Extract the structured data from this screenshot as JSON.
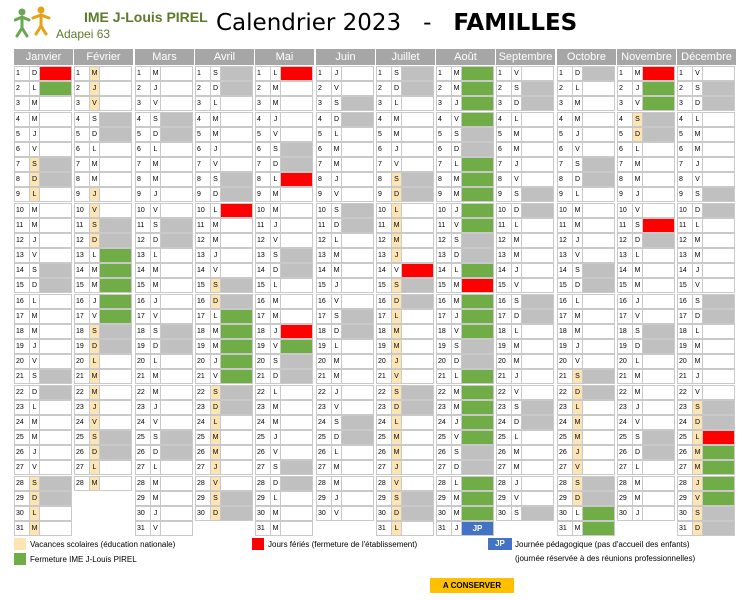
{
  "header": {
    "logo_name": "IME J-Louis PIREL",
    "logo_sub": "Adapei 63",
    "title_part1": "Calendrier 2023   -   ",
    "title_part2": "FAMILLES"
  },
  "colors": {
    "vacances": "#fce4b4",
    "fermeture": "#70ad47",
    "ferie": "#ff0000",
    "weekend": "#c0c0c0",
    "jp": "#4472c4",
    "header_bg": "#a6a6a6"
  },
  "months": [
    {
      "name": "Janvier",
      "first": 0,
      "days": 31,
      "ferie": [
        1
      ],
      "fermeture": [
        2
      ],
      "vacances": [
        7,
        8,
        9,
        28,
        29,
        30,
        31
      ],
      "jp": []
    },
    {
      "name": "Février",
      "first": 3,
      "days": 28,
      "ferie": [],
      "fermeture": [
        13,
        14,
        15,
        16,
        17
      ],
      "vacances": [
        1,
        2,
        3,
        9,
        10,
        11,
        12,
        18,
        19,
        20,
        21,
        22,
        23,
        24,
        25,
        26,
        27,
        28
      ],
      "jp": []
    },
    {
      "name": "Mars",
      "first": 3,
      "days": 31,
      "ferie": [],
      "fermeture": [],
      "vacances": [],
      "jp": []
    },
    {
      "name": "Avril",
      "first": 6,
      "days": 30,
      "ferie": [
        10
      ],
      "fermeture": [
        17,
        18,
        19,
        20,
        21
      ],
      "vacances": [
        15,
        16,
        22,
        23,
        24,
        25,
        26,
        27,
        28,
        29,
        30
      ],
      "jp": []
    },
    {
      "name": "Mai",
      "first": 1,
      "days": 31,
      "ferie": [
        1,
        8,
        18
      ],
      "fermeture": [
        19
      ],
      "vacances": [],
      "jp": []
    },
    {
      "name": "Juin",
      "first": 4,
      "days": 30,
      "ferie": [],
      "fermeture": [],
      "vacances": [],
      "jp": []
    },
    {
      "name": "Juillet",
      "first": 6,
      "days": 31,
      "ferie": [
        14
      ],
      "fermeture": [],
      "vacances": [
        8,
        9,
        10,
        11,
        12,
        13,
        15,
        16,
        17,
        18,
        19,
        20,
        21,
        22,
        23,
        24,
        25,
        26,
        27,
        28,
        29,
        30,
        31
      ],
      "jp": []
    },
    {
      "name": "Août",
      "first": 2,
      "days": 31,
      "ferie": [
        15
      ],
      "fermeture": [
        1,
        2,
        3,
        4,
        7,
        8,
        9,
        10,
        11,
        14,
        16,
        17,
        18,
        21,
        22,
        23,
        24,
        25,
        28,
        29,
        30
      ],
      "vacances": [],
      "jp": [
        31
      ]
    },
    {
      "name": "Septembre",
      "first": 5,
      "days": 30,
      "ferie": [],
      "fermeture": [],
      "vacances": [],
      "jp": []
    },
    {
      "name": "Octobre",
      "first": 0,
      "days": 31,
      "ferie": [],
      "fermeture": [
        30,
        31
      ],
      "vacances": [
        21,
        22,
        23,
        24,
        25,
        26,
        27,
        28,
        29
      ],
      "jp": []
    },
    {
      "name": "Novembre",
      "first": 3,
      "days": 30,
      "ferie": [
        1,
        11
      ],
      "fermeture": [
        1,
        2,
        3
      ],
      "vacances": [
        4,
        5
      ],
      "jp": []
    },
    {
      "name": "Décembre",
      "first": 5,
      "days": 31,
      "ferie": [
        25
      ],
      "fermeture": [
        26,
        27,
        28,
        29
      ],
      "vacances": [
        23,
        24,
        25,
        26,
        27,
        28,
        29,
        30,
        31
      ],
      "jp": []
    }
  ],
  "day_letters": [
    "D",
    "L",
    "M",
    "M",
    "J",
    "V",
    "S"
  ],
  "jp_label": "JP",
  "legend": {
    "vacances": "Vacances scolaires (éducation nationale)",
    "fermeture": "Fermeture IME J-Louis PIREL",
    "ferie": "Jours fériés (fermeture de l'établissement)",
    "jp_key": "JP",
    "jp_line1": "Journée pédagogique (pas d'accueil des enfants)",
    "jp_line2": "(journée réservée à des réunions professionnelles)"
  },
  "footer": {
    "keep": "A CONSERVER"
  }
}
